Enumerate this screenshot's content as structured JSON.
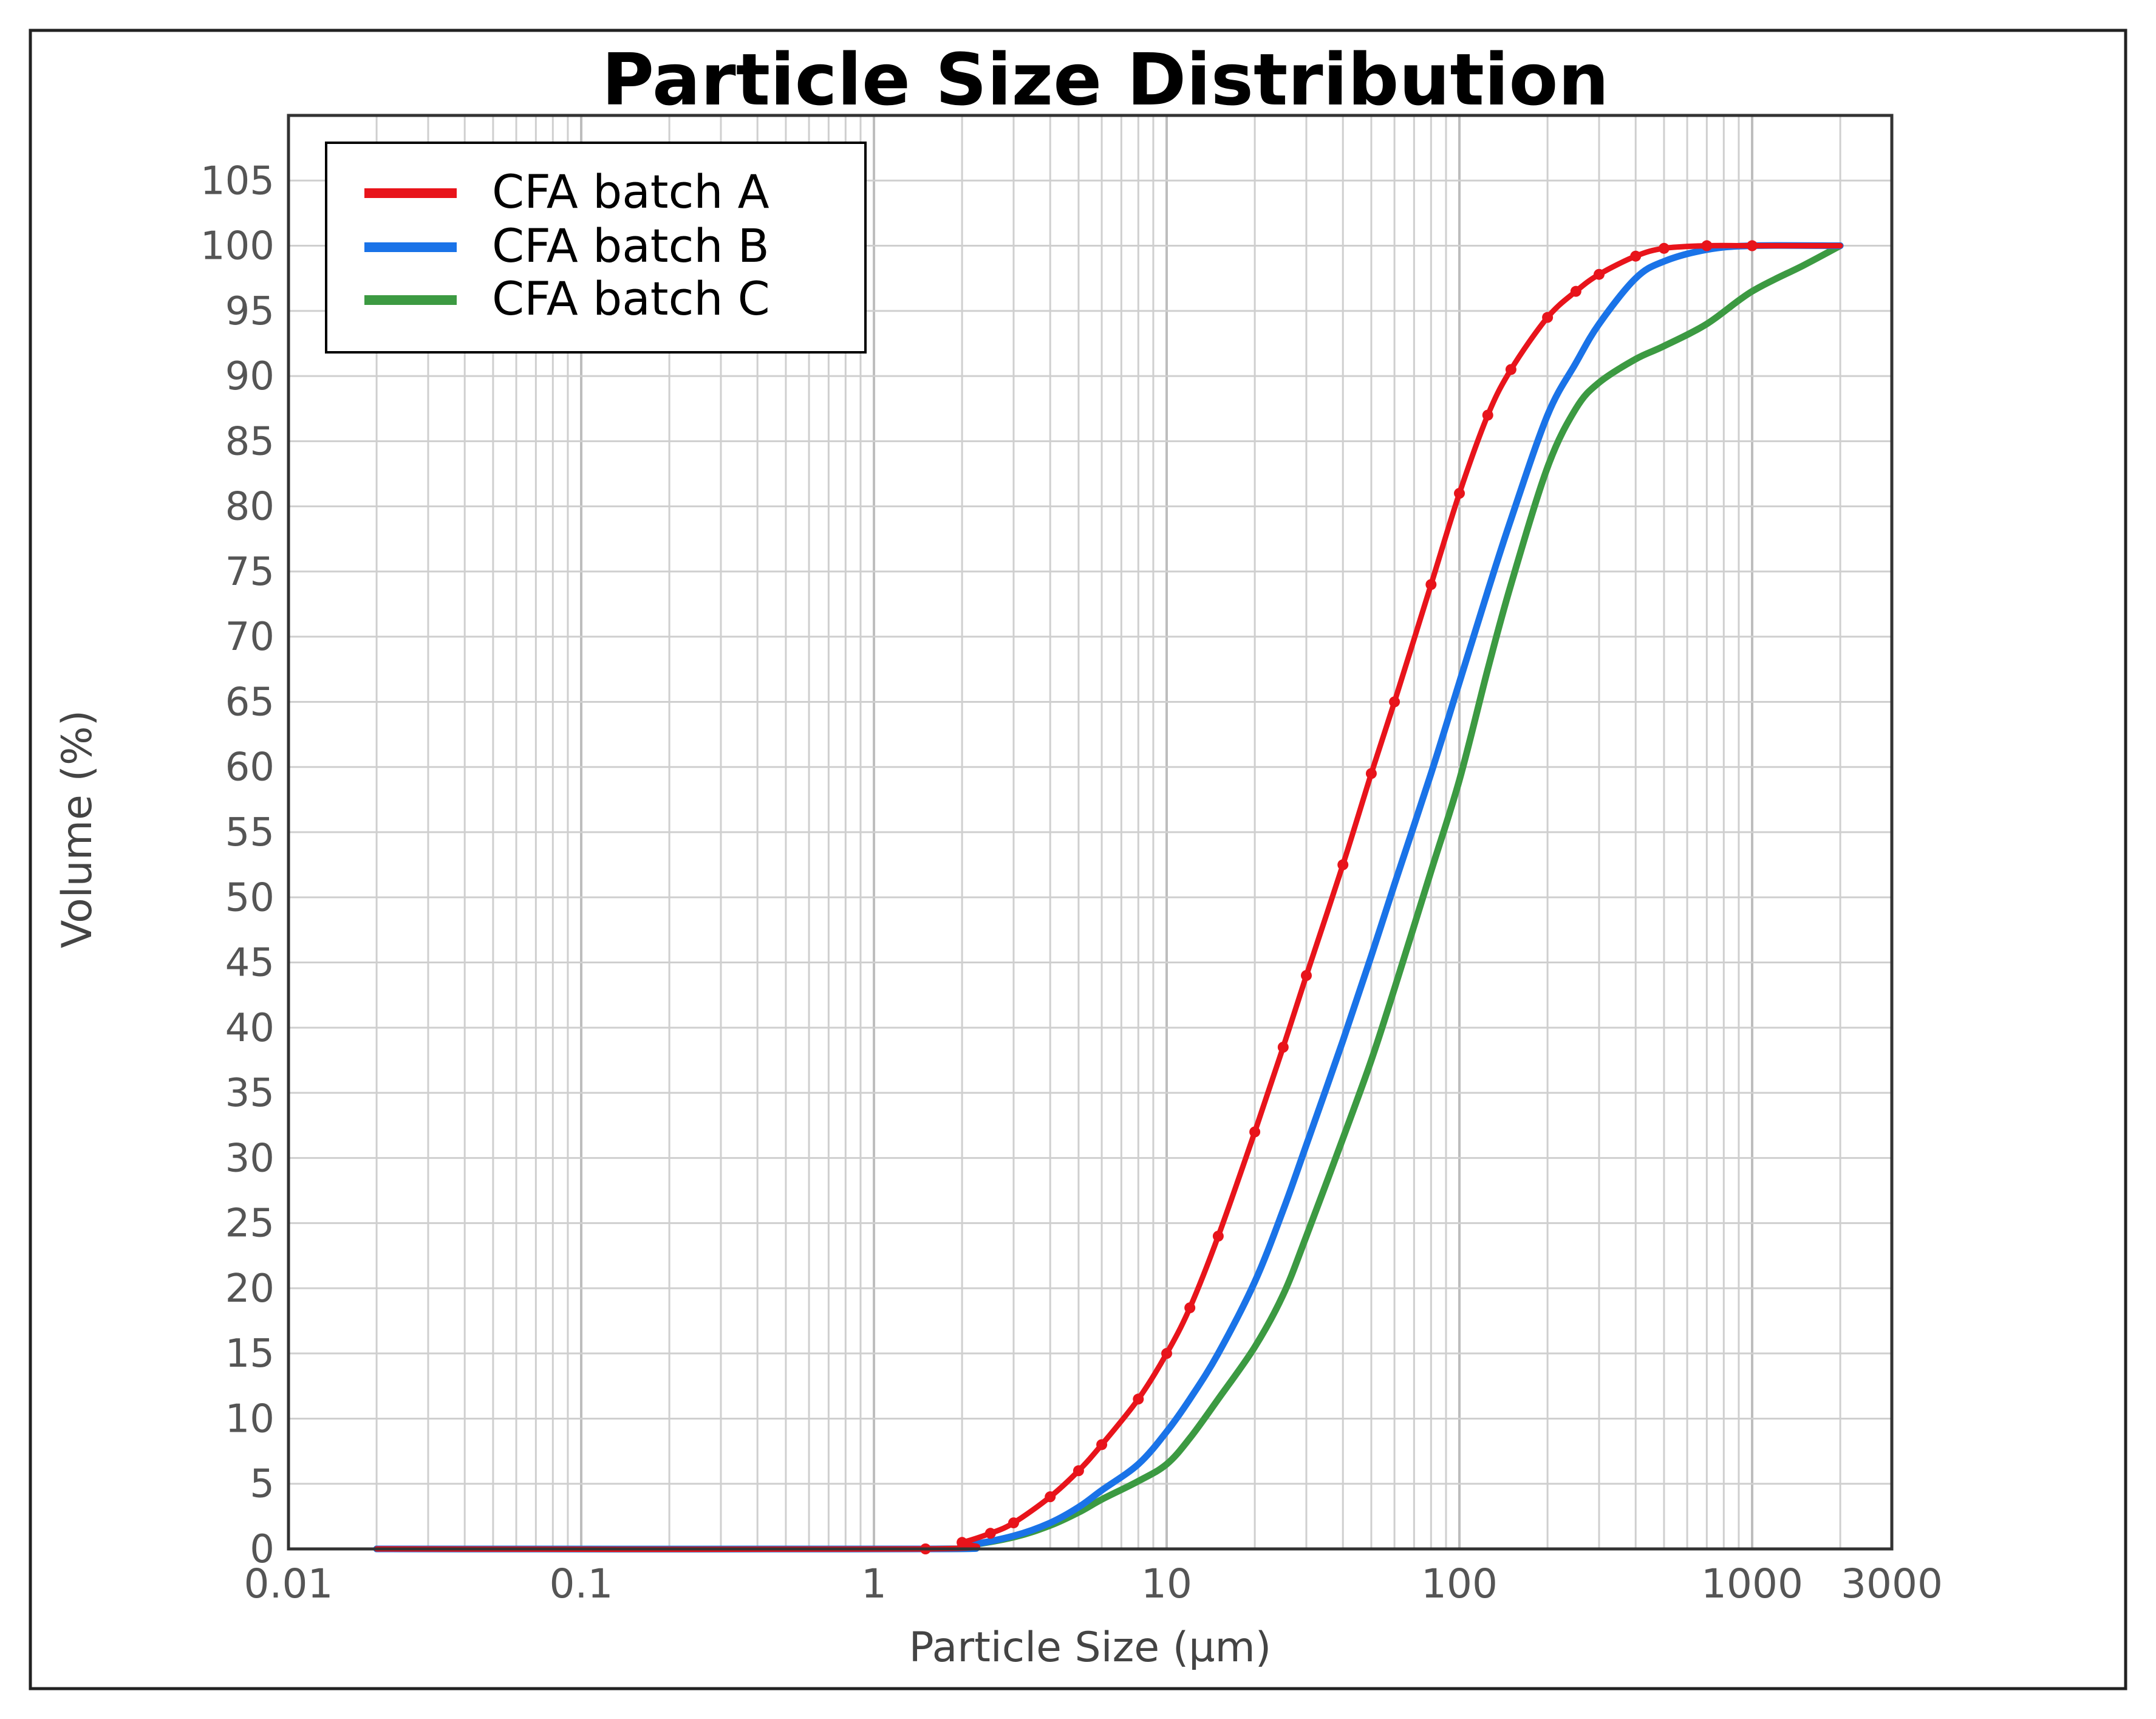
{
  "chart_data": {
    "type": "line",
    "title": "Particle Size Distribution",
    "xlabel": "Particle Size (µm)",
    "ylabel": "Volume (%)",
    "xscale": "log",
    "xlim": [
      0.01,
      3000
    ],
    "ylim": [
      0,
      110
    ],
    "grid": true,
    "legend_position": "top-left",
    "x_ticks": [
      {
        "value": 0.01,
        "label": "0.01"
      },
      {
        "value": 0.1,
        "label": "0.1"
      },
      {
        "value": 1,
        "label": "1"
      },
      {
        "value": 10,
        "label": "10"
      },
      {
        "value": 100,
        "label": "100"
      },
      {
        "value": 1000,
        "label": "1000"
      },
      {
        "value": 3000,
        "label": "3000"
      }
    ],
    "y_ticks": [
      0,
      5,
      10,
      15,
      20,
      25,
      30,
      35,
      40,
      45,
      50,
      55,
      60,
      65,
      70,
      75,
      80,
      85,
      90,
      95,
      100,
      105
    ],
    "series": [
      {
        "name": "CFA batch A",
        "color": "#e8141b",
        "x": [
          0.02,
          1.5,
          2,
          2.5,
          3,
          4,
          5,
          6,
          8,
          10,
          12,
          15,
          20,
          25,
          30,
          40,
          50,
          60,
          80,
          100,
          125,
          150,
          200,
          250,
          300,
          400,
          500,
          700,
          1000,
          2000
        ],
        "y": [
          0,
          0,
          0.5,
          1.2,
          2,
          4,
          6,
          8,
          11.5,
          15,
          18.5,
          24,
          32,
          38.5,
          44,
          52.5,
          59.5,
          65,
          74,
          81,
          87,
          90.5,
          94.5,
          96.5,
          97.8,
          99.2,
          99.8,
          100,
          100,
          100
        ]
      },
      {
        "name": "CFA batch B",
        "color": "#1a73e8",
        "x": [
          0.02,
          1.5,
          2,
          3,
          4,
          5,
          6,
          8,
          10,
          12,
          15,
          20,
          25,
          30,
          40,
          50,
          60,
          80,
          100,
          125,
          150,
          200,
          250,
          300,
          400,
          500,
          700,
          1000,
          2000
        ],
        "y": [
          0,
          0,
          0.2,
          1,
          2,
          3.2,
          4.5,
          6.5,
          9,
          11.5,
          15,
          20.5,
          26,
          31,
          39,
          45.5,
          51,
          59.5,
          66.5,
          73.5,
          79,
          87,
          91,
          94,
          97.5,
          98.8,
          99.7,
          100,
          100
        ]
      },
      {
        "name": "CFA batch C",
        "color": "#3c9a42",
        "x": [
          0.02,
          1.5,
          2,
          3,
          4,
          5,
          6,
          8,
          10,
          12,
          15,
          20,
          25,
          30,
          40,
          50,
          60,
          80,
          100,
          125,
          150,
          200,
          250,
          300,
          400,
          500,
          700,
          1000,
          1500,
          2000
        ],
        "y": [
          0,
          0,
          0.2,
          0.9,
          1.8,
          2.8,
          3.8,
          5.2,
          6.5,
          8.5,
          11.5,
          15.5,
          19.5,
          24,
          31.5,
          37.5,
          43,
          52,
          59,
          67.5,
          74,
          83,
          87.5,
          89.5,
          91.3,
          92.3,
          94,
          96.5,
          98.5,
          100
        ]
      }
    ]
  }
}
